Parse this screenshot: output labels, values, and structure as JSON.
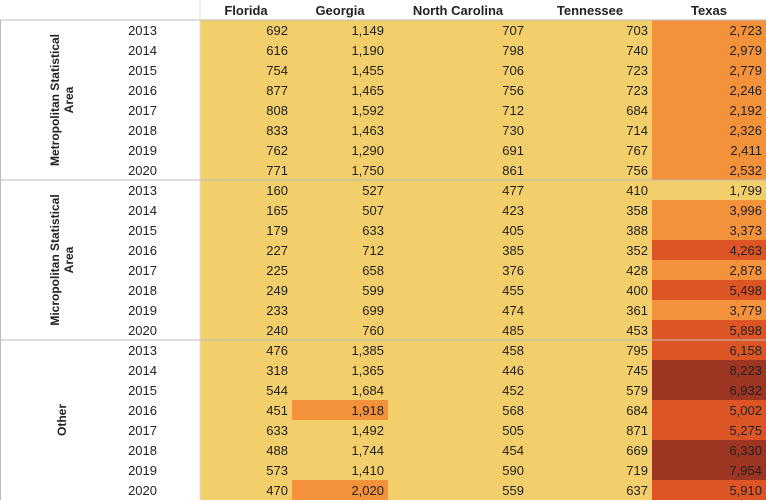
{
  "chart_data": {
    "type": "heatmap",
    "columns": [
      "Florida",
      "Georgia",
      "North Carolina",
      "Tennessee",
      "Texas"
    ],
    "groups": [
      {
        "name": "Metropolitan Statistical Area",
        "name_lines": [
          "Metropolitan Statistical",
          "Area"
        ],
        "years": [
          "2013",
          "2014",
          "2015",
          "2016",
          "2017",
          "2018",
          "2019",
          "2020"
        ],
        "values": [
          [
            692,
            1149,
            707,
            703,
            2723
          ],
          [
            616,
            1190,
            798,
            740,
            2979
          ],
          [
            754,
            1455,
            706,
            723,
            2779
          ],
          [
            877,
            1465,
            756,
            723,
            2246
          ],
          [
            808,
            1592,
            712,
            684,
            2192
          ],
          [
            833,
            1463,
            730,
            714,
            2326
          ],
          [
            762,
            1290,
            691,
            767,
            2411
          ],
          [
            771,
            1750,
            861,
            756,
            2532
          ]
        ]
      },
      {
        "name": "Micropolitan Statistical Area",
        "name_lines": [
          "Micropolitan Statistical",
          "Area"
        ],
        "years": [
          "2013",
          "2014",
          "2015",
          "2016",
          "2017",
          "2018",
          "2019",
          "2020"
        ],
        "values": [
          [
            160,
            527,
            477,
            410,
            1799
          ],
          [
            165,
            507,
            423,
            358,
            3996
          ],
          [
            179,
            633,
            405,
            388,
            3373
          ],
          [
            227,
            712,
            385,
            352,
            4263
          ],
          [
            225,
            658,
            376,
            428,
            2878
          ],
          [
            249,
            599,
            455,
            400,
            5498
          ],
          [
            233,
            699,
            474,
            361,
            3779
          ],
          [
            240,
            760,
            485,
            453,
            5898
          ]
        ]
      },
      {
        "name": "Other",
        "name_lines": [
          "Other"
        ],
        "years": [
          "2013",
          "2014",
          "2015",
          "2016",
          "2017",
          "2018",
          "2019",
          "2020"
        ],
        "values": [
          [
            476,
            1385,
            458,
            795,
            6158
          ],
          [
            318,
            1365,
            446,
            745,
            8223
          ],
          [
            544,
            1684,
            452,
            579,
            6932
          ],
          [
            451,
            1918,
            568,
            684,
            5002
          ],
          [
            633,
            1492,
            505,
            871,
            5275
          ],
          [
            488,
            1744,
            454,
            669,
            6330
          ],
          [
            573,
            1410,
            590,
            719,
            7954
          ],
          [
            470,
            2020,
            559,
            637,
            5910
          ]
        ]
      }
    ],
    "color_scale": {
      "low": "#f2cf6b",
      "mid": "#f4923b",
      "high": "#dd5524",
      "max": "#9e3522"
    }
  }
}
